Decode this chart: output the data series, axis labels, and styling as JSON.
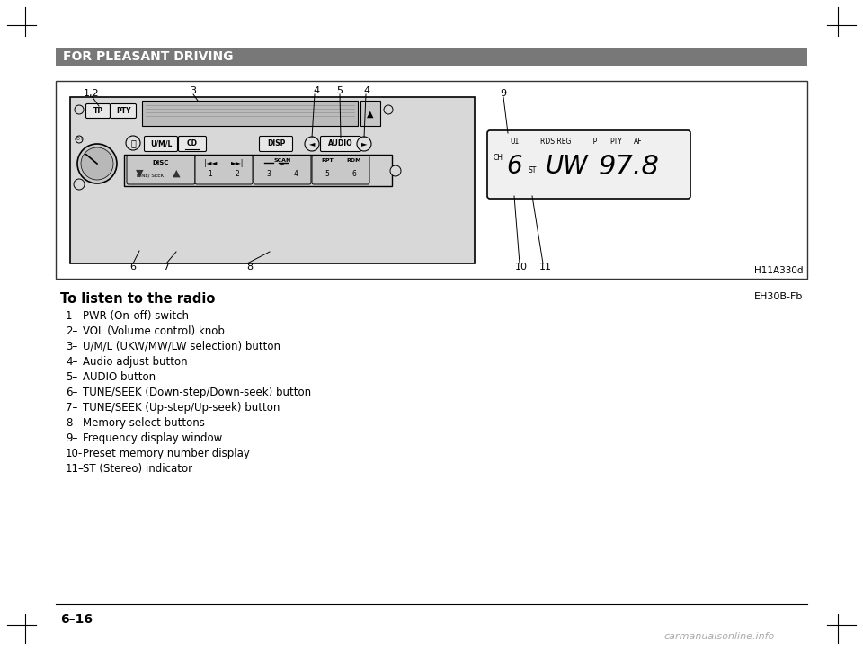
{
  "bg_color": "#ffffff",
  "header_bg": "#787878",
  "header_text": "FOR PLEASANT DRIVING",
  "header_text_color": "#ffffff",
  "header_fontsize": 10,
  "title_text": "To listen to the radio",
  "title_fontsize": 10.5,
  "ref_code": "EH30B-Fb",
  "image_ref": "H11A330d",
  "page_number": "6–16",
  "items": [
    [
      "1–",
      "PWR (On-off) switch"
    ],
    [
      "2–",
      "VOL (Volume control) knob"
    ],
    [
      "3–",
      "U/M/L (UKW/MW/LW selection) button"
    ],
    [
      "4–",
      "Audio adjust button"
    ],
    [
      "5–",
      "AUDIO button"
    ],
    [
      "6–",
      "TUNE/SEEK (Down-step/Down-seek) button"
    ],
    [
      "7–",
      "TUNE/SEEK (Up-step/Up-seek) button"
    ],
    [
      "8–",
      "Memory select buttons"
    ],
    [
      "9–",
      "Frequency display window"
    ],
    [
      "10-",
      "Preset memory number display"
    ],
    [
      "11–",
      "ST (Stereo) indicator"
    ]
  ],
  "item_fontsize": 8.5
}
